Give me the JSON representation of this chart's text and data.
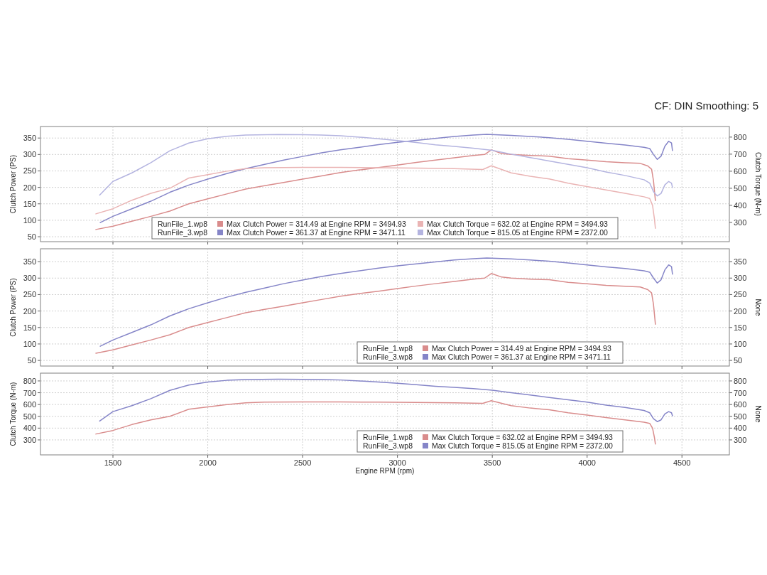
{
  "chart_data": [
    {
      "type": "line",
      "subtitle": "CF: DIN Smoothing: 5",
      "ylabel": "Clutch Power (PS)",
      "y2label": "Clutch Torque (N-m)",
      "xlim": [
        1118,
        4750
      ],
      "xticks": [
        1500,
        2000,
        2500,
        3000,
        3500,
        4000,
        4500
      ],
      "ylim": [
        35,
        385
      ],
      "yticks": [
        50,
        100,
        150,
        200,
        250,
        300,
        350
      ],
      "y2lim": [
        187,
        862
      ],
      "y2ticks": [
        300,
        400,
        500,
        600,
        700,
        800
      ],
      "grid": true,
      "legend": "bottom",
      "tick_labels": "y",
      "annotations": [
        "RunFile_1.wp8",
        "RunFile_3.wp8"
      ],
      "series": [
        {
          "name": "Max Clutch Power = 314.49 at Engine RPM = 3494.93",
          "color": "#d98c8c",
          "x": [
            1410,
            1500,
            1600,
            1700,
            1800,
            1900,
            2000,
            2100,
            2200,
            2300,
            2400,
            2500,
            2600,
            2700,
            2800,
            2900,
            3000,
            3100,
            3200,
            3300,
            3400,
            3460,
            3495,
            3550,
            3600,
            3700,
            3800,
            3900,
            4000,
            4100,
            4200,
            4280,
            4320,
            4340,
            4350,
            4360
          ],
          "values": [
            72,
            82,
            97,
            112,
            128,
            150,
            165,
            180,
            195,
            205,
            215,
            225,
            235,
            245,
            253,
            260,
            268,
            276,
            283,
            290,
            297,
            300,
            314,
            303,
            300,
            297,
            295,
            287,
            283,
            278,
            275,
            273,
            265,
            255,
            220,
            160
          ]
        },
        {
          "name": "Max Clutch Power = 361.37 at Engine RPM = 3471.11",
          "color": "#8585c8",
          "x": [
            1433,
            1500,
            1600,
            1700,
            1800,
            1900,
            2000,
            2100,
            2200,
            2300,
            2400,
            2500,
            2600,
            2700,
            2800,
            2900,
            3000,
            3100,
            3200,
            3300,
            3400,
            3471,
            3600,
            3700,
            3800,
            3900,
            4000,
            4100,
            4200,
            4300,
            4330,
            4350,
            4370,
            4390,
            4410,
            4430,
            4445,
            4450
          ],
          "values": [
            93,
            112,
            135,
            158,
            185,
            207,
            225,
            242,
            257,
            270,
            283,
            294,
            305,
            314,
            322,
            330,
            337,
            343,
            349,
            355,
            359,
            361,
            358,
            355,
            351,
            346,
            340,
            334,
            329,
            322,
            318,
            300,
            285,
            295,
            325,
            340,
            335,
            312
          ]
        },
        {
          "name": "Max Clutch Torque = 632.02 at Engine RPM = 3494.93",
          "color": "#eab4b4",
          "axis": "y2",
          "x": [
            1410,
            1500,
            1600,
            1700,
            1800,
            1900,
            2000,
            2100,
            2200,
            2300,
            2500,
            2700,
            2900,
            3100,
            3300,
            3450,
            3495,
            3550,
            3600,
            3700,
            3800,
            3900,
            4000,
            4100,
            4200,
            4300,
            4330,
            4345,
            4355,
            4360
          ],
          "values": [
            350,
            380,
            430,
            470,
            500,
            560,
            580,
            600,
            615,
            620,
            622,
            622,
            620,
            618,
            615,
            610,
            632,
            610,
            590,
            570,
            555,
            530,
            510,
            490,
            470,
            450,
            440,
            400,
            320,
            265
          ]
        },
        {
          "name": "Max Clutch Torque = 815.05 at Engine RPM = 2372.00",
          "color": "#b4b4e0",
          "axis": "y2",
          "x": [
            1430,
            1500,
            1600,
            1700,
            1800,
            1900,
            2000,
            2100,
            2200,
            2372,
            2500,
            2600,
            2700,
            2800,
            2900,
            3000,
            3100,
            3200,
            3300,
            3400,
            3500,
            3600,
            3700,
            3800,
            3900,
            4000,
            4100,
            4200,
            4300,
            4330,
            4350,
            4370,
            4390,
            4410,
            4430,
            4445,
            4450
          ],
          "values": [
            460,
            540,
            590,
            650,
            720,
            765,
            790,
            805,
            812,
            815,
            814,
            812,
            808,
            800,
            790,
            780,
            768,
            755,
            745,
            735,
            722,
            700,
            680,
            660,
            640,
            620,
            595,
            575,
            550,
            530,
            480,
            455,
            470,
            520,
            540,
            530,
            505
          ]
        }
      ]
    },
    {
      "type": "line",
      "ylabel": "Clutch Power (PS)",
      "y2label": "None",
      "xlim": [
        1118,
        4750
      ],
      "xticks": [
        1500,
        2000,
        2500,
        3000,
        3500,
        4000,
        4500
      ],
      "ylim": [
        33,
        389
      ],
      "yticks": [
        50,
        100,
        150,
        200,
        250,
        300,
        350
      ],
      "y2lim": [
        33,
        389
      ],
      "y2ticks": [
        50,
        100,
        150,
        200,
        250,
        300,
        350
      ],
      "grid": true,
      "legend": "bottom right",
      "tick_labels": "y",
      "annotations": [
        "RunFile_1.wp8",
        "RunFile_3.wp8"
      ],
      "series": [
        {
          "name": "Max Clutch Power = 314.49 at Engine RPM = 3494.93",
          "color": "#d98c8c",
          "x": [
            1410,
            1500,
            1600,
            1700,
            1800,
            1900,
            2000,
            2100,
            2200,
            2300,
            2400,
            2500,
            2600,
            2700,
            2800,
            2900,
            3000,
            3100,
            3200,
            3300,
            3400,
            3460,
            3495,
            3550,
            3600,
            3700,
            3800,
            3900,
            4000,
            4100,
            4200,
            4280,
            4320,
            4340,
            4350,
            4360
          ],
          "values": [
            72,
            82,
            97,
            112,
            128,
            150,
            165,
            180,
            195,
            205,
            215,
            225,
            235,
            245,
            253,
            260,
            268,
            276,
            283,
            290,
            297,
            300,
            314,
            303,
            300,
            297,
            295,
            287,
            283,
            278,
            275,
            273,
            265,
            255,
            220,
            160
          ]
        },
        {
          "name": "Max Clutch Power = 361.37 at Engine RPM = 3471.11",
          "color": "#8585c8",
          "x": [
            1433,
            1500,
            1600,
            1700,
            1800,
            1900,
            2000,
            2100,
            2200,
            2300,
            2400,
            2500,
            2600,
            2700,
            2800,
            2900,
            3000,
            3100,
            3200,
            3300,
            3400,
            3471,
            3600,
            3700,
            3800,
            3900,
            4000,
            4100,
            4200,
            4300,
            4330,
            4350,
            4370,
            4390,
            4410,
            4430,
            4445,
            4450
          ],
          "values": [
            93,
            112,
            135,
            158,
            185,
            207,
            225,
            242,
            257,
            270,
            283,
            294,
            305,
            314,
            322,
            330,
            337,
            343,
            349,
            355,
            359,
            361,
            358,
            355,
            351,
            346,
            340,
            334,
            329,
            322,
            318,
            300,
            285,
            295,
            325,
            340,
            335,
            312
          ]
        }
      ]
    },
    {
      "type": "line",
      "xlabel": "Engine RPM (rpm)",
      "ylabel": "Clutch Torque (N-m)",
      "y2label": "None",
      "xlim": [
        1118,
        4750
      ],
      "xticks": [
        1500,
        2000,
        2500,
        3000,
        3500,
        4000,
        4500
      ],
      "ylim": [
        173,
        866
      ],
      "yticks": [
        300,
        400,
        500,
        600,
        700,
        800
      ],
      "y2lim": [
        173,
        866
      ],
      "y2ticks": [
        300,
        400,
        500,
        600,
        700,
        800
      ],
      "grid": true,
      "legend": "bottom right",
      "annotations": [
        "RunFile_1.wp8",
        "RunFile_3.wp8"
      ],
      "series": [
        {
          "name": "Max Clutch Torque = 632.02 at Engine RPM = 3494.93",
          "color": "#d98c8c",
          "x": [
            1410,
            1500,
            1600,
            1700,
            1800,
            1900,
            2000,
            2100,
            2200,
            2300,
            2500,
            2700,
            2900,
            3100,
            3300,
            3450,
            3495,
            3550,
            3600,
            3700,
            3800,
            3900,
            4000,
            4100,
            4200,
            4300,
            4330,
            4345,
            4355,
            4360
          ],
          "values": [
            350,
            380,
            430,
            470,
            500,
            560,
            580,
            600,
            615,
            620,
            622,
            622,
            620,
            618,
            615,
            610,
            632,
            610,
            590,
            570,
            555,
            530,
            510,
            490,
            470,
            450,
            440,
            400,
            320,
            265
          ]
        },
        {
          "name": "Max Clutch Torque = 815.05 at Engine RPM = 2372.00",
          "color": "#8585c8",
          "x": [
            1430,
            1500,
            1600,
            1700,
            1800,
            1900,
            2000,
            2100,
            2200,
            2372,
            2500,
            2600,
            2700,
            2800,
            2900,
            3000,
            3100,
            3200,
            3300,
            3400,
            3500,
            3600,
            3700,
            3800,
            3900,
            4000,
            4100,
            4200,
            4300,
            4330,
            4350,
            4370,
            4390,
            4410,
            4430,
            4445,
            4450
          ],
          "values": [
            460,
            540,
            590,
            650,
            720,
            765,
            790,
            805,
            812,
            815,
            814,
            812,
            808,
            800,
            790,
            780,
            768,
            755,
            745,
            735,
            722,
            700,
            680,
            660,
            640,
            620,
            595,
            575,
            550,
            530,
            480,
            455,
            470,
            520,
            540,
            530,
            505
          ]
        }
      ]
    }
  ]
}
